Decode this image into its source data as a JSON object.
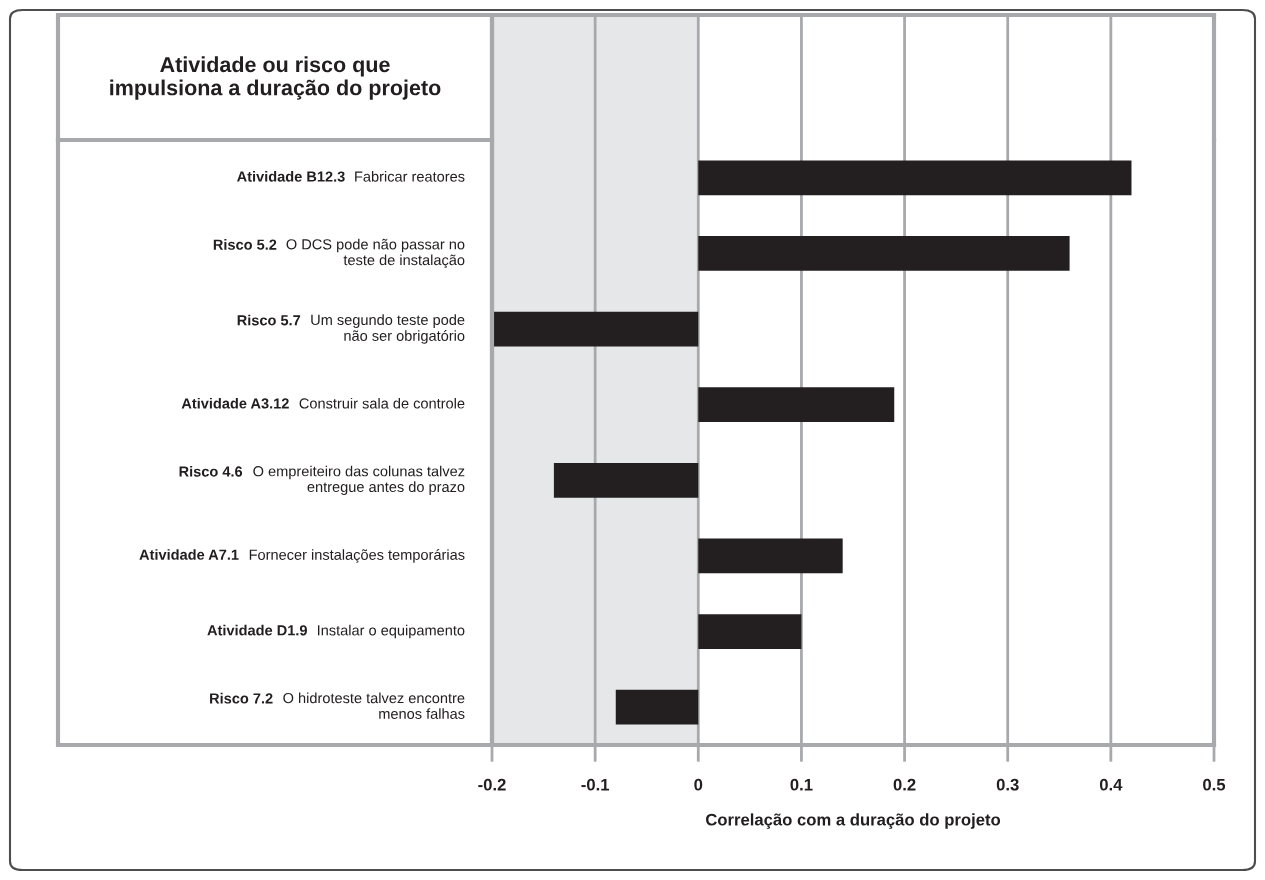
{
  "chart_data": {
    "type": "bar",
    "orientation": "horizontal",
    "ylabel": "Atividade ou risco que\nimpulsiona a duração do projeto",
    "xlabel": "Correlação com a duração do projeto",
    "categories": [
      "Atividade B12.3  Fabricar reatores",
      "Risco 5.2  O DCS pode não passar no\nteste de instalação",
      "Risco 5.7  Um segundo teste pode\nnão ser obrigatório",
      "Atividade A3.12  Construir sala de controle",
      "Risco 4.6  O empreiteiro das colunas talvez\nentregue antes do prazo",
      "Atividade A7.1  Fornecer instalações temporárias",
      "Atividade D1.9  Instalar o equipamento",
      "Risco 7.2  O hidroteste talvez encontre\nmenos falhas"
    ],
    "values": [
      0.42,
      0.36,
      -0.2,
      0.19,
      -0.14,
      0.14,
      0.1,
      -0.08
    ],
    "color": "#231f20",
    "xlim": [
      -0.2,
      0.5
    ],
    "xticks": [
      -0.2,
      -0.1,
      0,
      0.1,
      0.2,
      0.3,
      0.4,
      0.5
    ],
    "grid": "x",
    "bands": [
      {
        "axis": "x",
        "from": -0.2,
        "to": 0,
        "color": "#e6e7e9"
      }
    ]
  }
}
